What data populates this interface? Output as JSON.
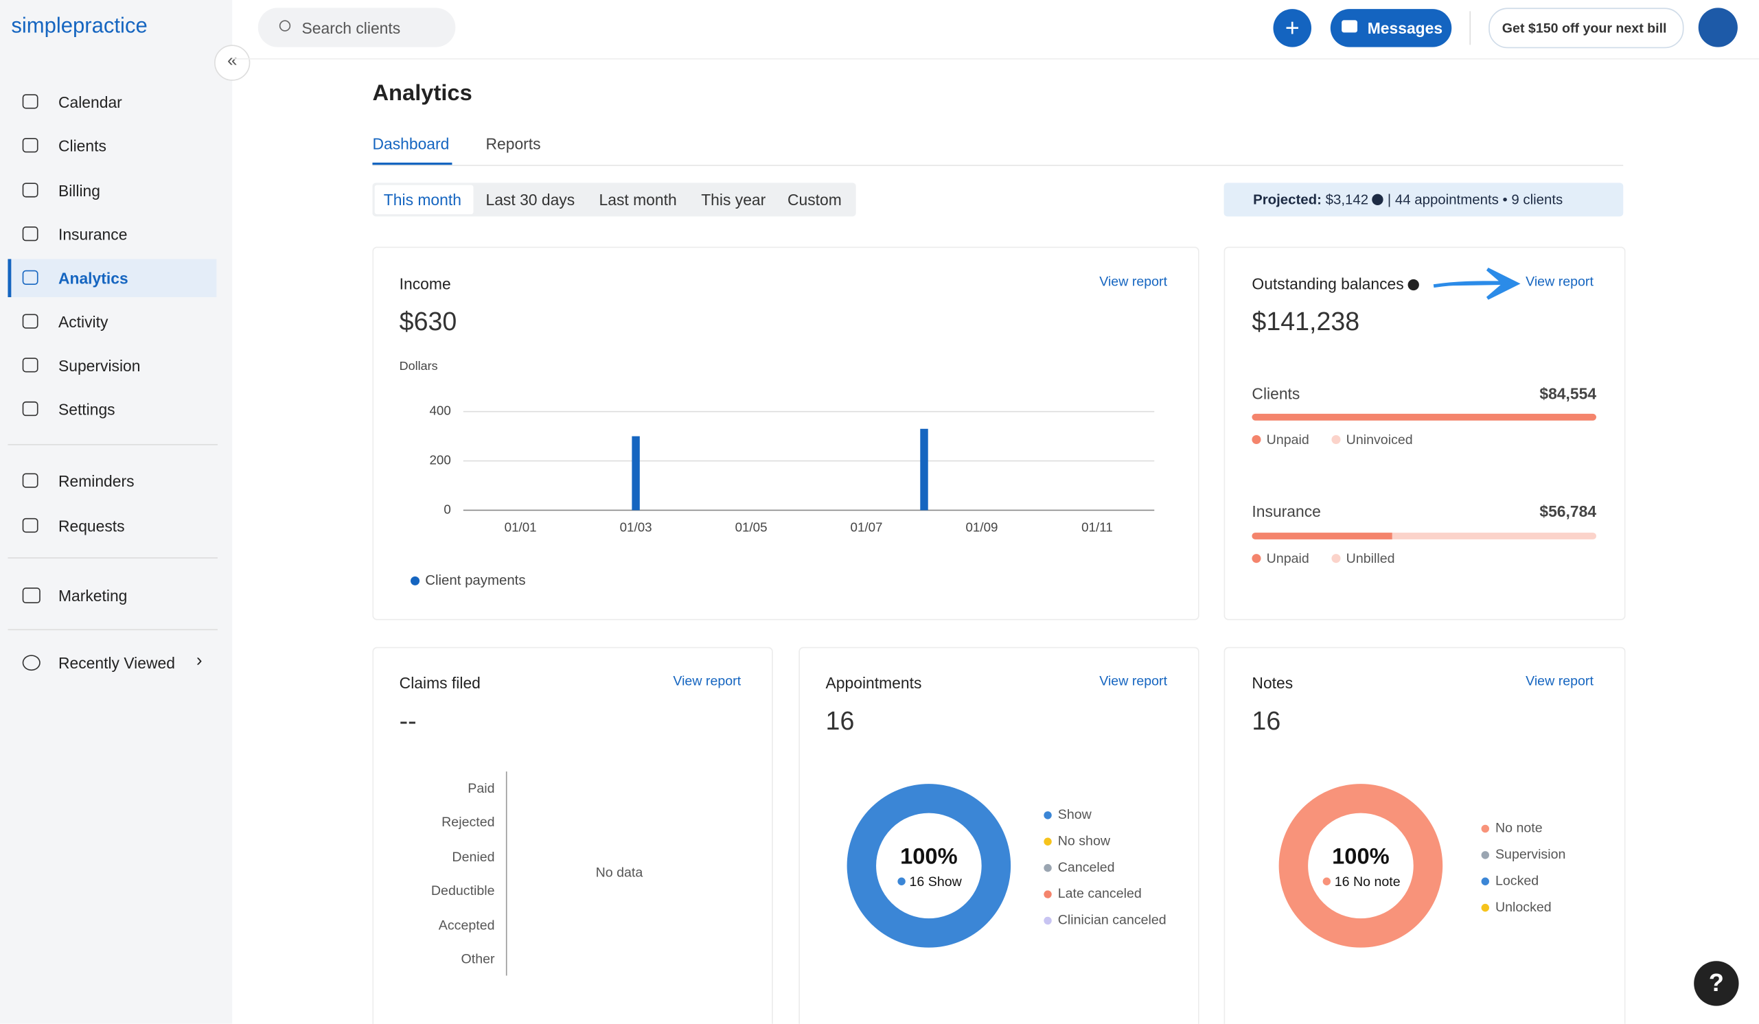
{
  "brand": "simplepractice",
  "search": "Search clients",
  "header": {
    "messages": "Messages",
    "promo": "Get $150 off your next bill"
  },
  "nav": {
    "main": [
      "Calendar",
      "Clients",
      "Billing",
      "Insurance",
      "Analytics",
      "Activity",
      "Supervision",
      "Settings"
    ],
    "secondary": [
      "Reminders",
      "Requests"
    ],
    "marketing": "Marketing",
    "recent": "Recently Viewed"
  },
  "page": {
    "title": "Analytics",
    "tabs": [
      "Dashboard",
      "Reports"
    ],
    "ranges": [
      "This month",
      "Last 30 days",
      "Last month",
      "This year",
      "Custom"
    ],
    "projected": {
      "label": "Projected:",
      "amount": "$3,142",
      "details": "| 44 appointments • 9 clients"
    }
  },
  "cards": {
    "income": {
      "title": "Income",
      "link": "View report",
      "total": "$630"
    },
    "outstanding": {
      "title": "Outstanding balances",
      "link": "View report",
      "total": "$141,238",
      "clients": {
        "label": "Clients",
        "amount": "$84,554",
        "legend": [
          "Unpaid",
          "Uninvoiced"
        ]
      },
      "insurance": {
        "label": "Insurance",
        "amount": "$56,784",
        "legend": [
          "Unpaid",
          "Unbilled"
        ]
      }
    },
    "claims": {
      "title": "Claims filed",
      "link": "View report",
      "total": "--",
      "categories": [
        "Paid",
        "Rejected",
        "Denied",
        "Deductible",
        "Accepted",
        "Other"
      ],
      "empty": "No data"
    },
    "appointments": {
      "title": "Appointments",
      "link": "View report",
      "total": "16"
    },
    "notes": {
      "title": "Notes",
      "link": "View report",
      "total": "16"
    }
  },
  "chart_data": [
    {
      "type": "bar",
      "y_label": "Dollars",
      "categories": [
        "01/01",
        null,
        "01/03",
        null,
        "01/05",
        null,
        "01/07",
        null,
        "01/09",
        null,
        "01/11",
        null
      ],
      "series": [
        {
          "name": "Client payments",
          "color": "#1565c0",
          "values": [
            0,
            0,
            300,
            0,
            0,
            0,
            0,
            330,
            0,
            0,
            0,
            0
          ]
        }
      ],
      "ylim": [
        0,
        400
      ],
      "yticks": [
        0,
        200,
        400
      ],
      "grid": true
    },
    {
      "type": "pie",
      "categories": [
        "Show",
        "No show",
        "Canceled",
        "Late canceled",
        "Clinician canceled"
      ],
      "colors": [
        "#3b86d6",
        "#f6c31c",
        "#9aa5b1",
        "#f4846c",
        "#c8c4f2"
      ],
      "values": [
        16,
        0,
        0,
        0,
        0
      ],
      "center_value": "100%",
      "center_label": "16 Show"
    },
    {
      "type": "pie",
      "categories": [
        "No note",
        "Supervision",
        "Locked",
        "Unlocked"
      ],
      "colors": [
        "#f8937a",
        "#9aa5b1",
        "#3b86d6",
        "#f6c31c"
      ],
      "values": [
        16,
        0,
        0,
        0
      ],
      "center_value": "100%",
      "center_label": "16 No note"
    }
  ]
}
